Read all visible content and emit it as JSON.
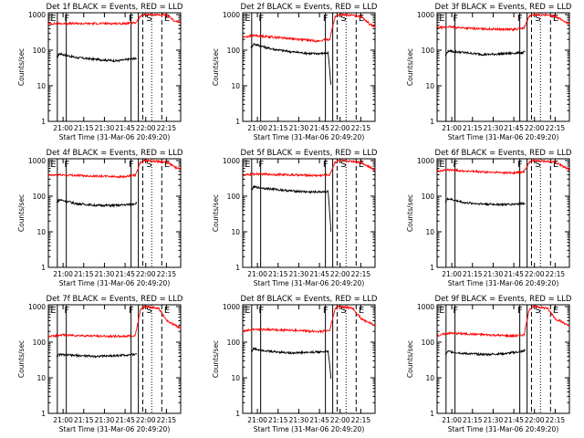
{
  "figure": {
    "ylabel": "Counts/sec",
    "xlabel": "Start Time (31-Mar-06 20:49:20)",
    "xticks": [
      "21:00",
      "21:15",
      "21:30",
      "21:45",
      "22:00",
      "22:15"
    ],
    "yticks": [
      "1",
      "10",
      "100",
      "1000"
    ],
    "marker_labels": [
      "E",
      "F",
      "F",
      "S",
      "E"
    ],
    "colors": {
      "events": "#000000",
      "lld": "#ff0000",
      "axes": "#000000"
    }
  },
  "chart_data": [
    {
      "type": "line",
      "title": "Det 1f BLACK = Events, RED = LLD",
      "xlabel": "Start Time (31-Mar-06 20:49:20)",
      "ylabel": "Counts/sec",
      "x_unit": "minutes after 20:49:20",
      "xlim": [
        0,
        96
      ],
      "ylim": [
        1,
        1000
      ],
      "yscale": "log",
      "series": [
        {
          "color": "#000000",
          "x": [
            6,
            8,
            20,
            35,
            50,
            62,
            64
          ],
          "values": [
            60,
            80,
            62,
            55,
            50,
            58,
            60
          ]
        },
        {
          "color": "#ff0000",
          "x": [
            0,
            8,
            30,
            55,
            63,
            67,
            70,
            80,
            86,
            92,
            96
          ],
          "values": [
            550,
            560,
            560,
            560,
            580,
            900,
            1000,
            980,
            950,
            650,
            600
          ]
        }
      ]
    },
    {
      "type": "line",
      "title": "Det 2f BLACK = Events, RED = LLD",
      "xlabel": "Start Time (31-Mar-06 20:49:20)",
      "ylabel": "Counts/sec",
      "x_unit": "minutes after 20:49:20",
      "xlim": [
        0,
        96
      ],
      "ylim": [
        1,
        1000
      ],
      "yscale": "log",
      "series": [
        {
          "color": "#000000",
          "x": [
            6,
            8,
            20,
            35,
            50,
            62,
            64
          ],
          "values": [
            120,
            150,
            110,
            90,
            80,
            82,
            10
          ]
        },
        {
          "color": "#ff0000",
          "x": [
            0,
            8,
            30,
            55,
            63,
            67,
            70,
            80,
            86,
            92,
            96
          ],
          "values": [
            230,
            260,
            220,
            180,
            200,
            850,
            1000,
            950,
            900,
            550,
            450
          ]
        }
      ]
    },
    {
      "type": "line",
      "title": "Det 3f BLACK = Events, RED = LLD",
      "xlabel": "Start Time (31-Mar-06 20:49:20)",
      "ylabel": "Counts/sec",
      "x_unit": "minutes after 20:49:20",
      "xlim": [
        0,
        96
      ],
      "ylim": [
        1,
        1000
      ],
      "yscale": "log",
      "series": [
        {
          "color": "#000000",
          "x": [
            6,
            8,
            20,
            35,
            50,
            62,
            64
          ],
          "values": [
            70,
            95,
            85,
            75,
            80,
            85,
            90
          ]
        },
        {
          "color": "#ff0000",
          "x": [
            0,
            8,
            30,
            55,
            63,
            67,
            70,
            80,
            86,
            92,
            96
          ],
          "values": [
            420,
            450,
            400,
            380,
            420,
            900,
            1000,
            950,
            900,
            650,
            550
          ]
        }
      ]
    },
    {
      "type": "line",
      "title": "Det 4f BLACK = Events, RED = LLD",
      "xlabel": "Start Time (31-Mar-06 20:49:20)",
      "ylabel": "Counts/sec",
      "x_unit": "minutes after 20:49:20",
      "xlim": [
        0,
        96
      ],
      "ylim": [
        1,
        1000
      ],
      "yscale": "log",
      "series": [
        {
          "color": "#000000",
          "x": [
            6,
            8,
            20,
            35,
            50,
            62,
            64
          ],
          "values": [
            65,
            80,
            62,
            55,
            55,
            60,
            65
          ]
        },
        {
          "color": "#ff0000",
          "x": [
            0,
            8,
            30,
            55,
            63,
            67,
            70,
            80,
            86,
            92,
            96
          ],
          "values": [
            380,
            400,
            370,
            350,
            380,
            900,
            1000,
            950,
            900,
            650,
            550
          ]
        }
      ]
    },
    {
      "type": "line",
      "title": "Det 5f BLACK = Events, RED = LLD",
      "xlabel": "Start Time (31-Mar-06 20:49:20)",
      "ylabel": "Counts/sec",
      "x_unit": "minutes after 20:49:20",
      "xlim": [
        0,
        96
      ],
      "ylim": [
        1,
        1000
      ],
      "yscale": "log",
      "series": [
        {
          "color": "#000000",
          "x": [
            6,
            8,
            20,
            35,
            50,
            62,
            64
          ],
          "values": [
            150,
            180,
            160,
            140,
            130,
            135,
            10
          ]
        },
        {
          "color": "#ff0000",
          "x": [
            0,
            8,
            30,
            55,
            63,
            67,
            70,
            80,
            86,
            92,
            96
          ],
          "values": [
            380,
            420,
            400,
            380,
            400,
            900,
            1000,
            950,
            900,
            650,
            550
          ]
        }
      ]
    },
    {
      "type": "line",
      "title": "Det 6f BLACK = Events, RED = LLD",
      "xlabel": "Start Time (31-Mar-06 20:49:20)",
      "ylabel": "Counts/sec",
      "x_unit": "minutes after 20:49:20",
      "xlim": [
        0,
        96
      ],
      "ylim": [
        1,
        1000
      ],
      "yscale": "log",
      "series": [
        {
          "color": "#000000",
          "x": [
            6,
            8,
            20,
            35,
            50,
            62,
            64
          ],
          "values": [
            70,
            85,
            65,
            60,
            58,
            62,
            65
          ]
        },
        {
          "color": "#ff0000",
          "x": [
            0,
            8,
            30,
            55,
            63,
            67,
            70,
            80,
            86,
            92,
            96
          ],
          "values": [
            500,
            550,
            480,
            450,
            480,
            900,
            1000,
            950,
            900,
            650,
            550
          ]
        }
      ]
    },
    {
      "type": "line",
      "title": "Det 7f BLACK = Events, RED = LLD",
      "xlabel": "Start Time (31-Mar-06 20:49:20)",
      "ylabel": "Counts/sec",
      "x_unit": "minutes after 20:49:20",
      "xlim": [
        0,
        96
      ],
      "ylim": [
        1,
        1000
      ],
      "yscale": "log",
      "series": [
        {
          "color": "#000000",
          "x": [
            6,
            8,
            20,
            35,
            50,
            62,
            64
          ],
          "values": [
            40,
            45,
            42,
            40,
            42,
            45,
            48
          ]
        },
        {
          "color": "#ff0000",
          "x": [
            0,
            8,
            30,
            55,
            63,
            67,
            70,
            80,
            86,
            92,
            96
          ],
          "values": [
            140,
            160,
            150,
            145,
            155,
            850,
            1000,
            900,
            400,
            300,
            250
          ]
        }
      ]
    },
    {
      "type": "line",
      "title": "Det 8f BLACK = Events, RED = LLD",
      "xlabel": "Start Time (31-Mar-06 20:49:20)",
      "ylabel": "Counts/sec",
      "x_unit": "minutes after 20:49:20",
      "xlim": [
        0,
        96
      ],
      "ylim": [
        1,
        1000
      ],
      "yscale": "log",
      "series": [
        {
          "color": "#000000",
          "x": [
            6,
            8,
            20,
            35,
            50,
            62,
            64
          ],
          "values": [
            55,
            65,
            55,
            50,
            52,
            55,
            10
          ]
        },
        {
          "color": "#ff0000",
          "x": [
            0,
            8,
            30,
            55,
            63,
            67,
            70,
            80,
            86,
            92,
            96
          ],
          "values": [
            200,
            230,
            220,
            200,
            210,
            850,
            1000,
            900,
            450,
            350,
            300
          ]
        }
      ]
    },
    {
      "type": "line",
      "title": "Det 9f BLACK = Events, RED = LLD",
      "xlabel": "Start Time (31-Mar-06 20:49:20)",
      "ylabel": "Counts/sec",
      "x_unit": "minutes after 20:49:20",
      "xlim": [
        0,
        96
      ],
      "ylim": [
        1,
        1000
      ],
      "yscale": "log",
      "series": [
        {
          "color": "#000000",
          "x": [
            6,
            8,
            20,
            35,
            50,
            62,
            64
          ],
          "values": [
            45,
            55,
            48,
            45,
            48,
            55,
            60
          ]
        },
        {
          "color": "#ff0000",
          "x": [
            0,
            8,
            30,
            55,
            63,
            67,
            70,
            80,
            86,
            92,
            96
          ],
          "values": [
            150,
            180,
            165,
            150,
            160,
            850,
            1000,
            900,
            450,
            350,
            280
          ]
        }
      ]
    }
  ]
}
